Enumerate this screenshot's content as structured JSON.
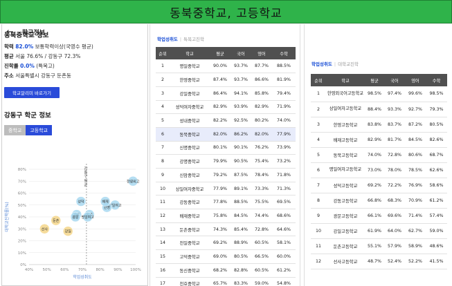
{
  "banner": "동북중학교, 고등학교",
  "left": {
    "header": "학군정보",
    "school_title": "동북중학교 정보",
    "rows": [
      {
        "label": "학력",
        "value": "82.0%",
        "rest": "보통학력이상(국영수 평균)"
      },
      {
        "label": "평균",
        "value": "",
        "rest": "서울 76.6% / 강동구 72.3%"
      },
      {
        "label": "진학률",
        "value": "0.0%",
        "rest": "(특목고)"
      },
      {
        "label": "주소",
        "value": "",
        "rest": "서울특별시 강동구 둔촌동"
      }
    ],
    "link_button": "학교알리미 바로가기",
    "section_title": "강동구 학군 정보",
    "tabs": [
      "중학교",
      "고등학교"
    ],
    "active_tab": "고등학교"
  },
  "mid": {
    "tab_on": "학업성취도",
    "tab_off": "특목고진학",
    "headers": [
      "순위",
      "학교",
      "평균",
      "국어",
      "영어",
      "수학"
    ],
    "highlight_rank": 6,
    "rows": [
      [
        "1",
        "명일중학교",
        "90.0%",
        "93.7%",
        "87.7%",
        "88.5%"
      ],
      [
        "2",
        "한영중학교",
        "87.4%",
        "93.7%",
        "86.6%",
        "81.9%"
      ],
      [
        "3",
        "강일중학교",
        "86.4%",
        "94.1%",
        "85.8%",
        "79.4%"
      ],
      [
        "4",
        "성덕여자중학교",
        "82.9%",
        "93.9%",
        "82.9%",
        "71.9%"
      ],
      [
        "5",
        "성내중학교",
        "82.2%",
        "92.5%",
        "80.2%",
        "74.0%"
      ],
      [
        "6",
        "동북중학교",
        "82.0%",
        "86.2%",
        "82.0%",
        "77.9%"
      ],
      [
        "7",
        "신명중학교",
        "80.1%",
        "90.1%",
        "76.2%",
        "73.9%"
      ],
      [
        "8",
        "강명중학교",
        "79.9%",
        "90.5%",
        "75.4%",
        "73.2%"
      ],
      [
        "9",
        "신암중학교",
        "79.2%",
        "87.5%",
        "78.4%",
        "71.8%"
      ],
      [
        "10",
        "상일여자중학교",
        "77.9%",
        "89.1%",
        "73.3%",
        "71.3%"
      ],
      [
        "11",
        "강동중학교",
        "77.8%",
        "88.5%",
        "75.5%",
        "69.5%"
      ],
      [
        "12",
        "배재중학교",
        "75.8%",
        "84.5%",
        "74.4%",
        "68.6%"
      ],
      [
        "13",
        "둔촌중학교",
        "74.3%",
        "85.4%",
        "72.8%",
        "64.6%"
      ],
      [
        "14",
        "천일중학교",
        "69.2%",
        "88.9%",
        "60.5%",
        "58.1%"
      ],
      [
        "15",
        "고덕중학교",
        "69.0%",
        "80.5%",
        "66.5%",
        "60.0%"
      ],
      [
        "16",
        "동신중학교",
        "68.2%",
        "82.8%",
        "60.5%",
        "61.2%"
      ],
      [
        "17",
        "천호중학교",
        "65.7%",
        "83.3%",
        "59.0%",
        "54.8%"
      ]
    ]
  },
  "right": {
    "tab_on": "학업성취도",
    "tab_off": "대학교진학",
    "headers": [
      "순위",
      "학교",
      "평균",
      "국어",
      "영어",
      "수학"
    ],
    "rows": [
      [
        "1",
        "한영외국어고등학교",
        "98.5%",
        "97.4%",
        "99.6%",
        "98.5%"
      ],
      [
        "2",
        "상일여자고등학교",
        "88.4%",
        "93.3%",
        "92.7%",
        "79.3%"
      ],
      [
        "3",
        "한영고등학교",
        "83.8%",
        "83.7%",
        "87.2%",
        "80.5%"
      ],
      [
        "4",
        "배재고등학교",
        "82.9%",
        "81.7%",
        "84.5%",
        "82.6%"
      ],
      [
        "5",
        "동북고등학교",
        "74.0%",
        "72.8%",
        "80.6%",
        "68.7%"
      ],
      [
        "6",
        "명일여자고등학교",
        "73.0%",
        "78.0%",
        "78.5%",
        "62.6%"
      ],
      [
        "7",
        "성덕고등학교",
        "69.2%",
        "72.2%",
        "76.9%",
        "58.6%"
      ],
      [
        "8",
        "강동고등학교",
        "66.8%",
        "68.3%",
        "70.9%",
        "61.2%"
      ],
      [
        "9",
        "광문고등학교",
        "66.1%",
        "69.6%",
        "71.4%",
        "57.4%"
      ],
      [
        "10",
        "강일고등학교",
        "61.9%",
        "64.0%",
        "62.7%",
        "59.0%"
      ],
      [
        "11",
        "둔촌고등학교",
        "55.1%",
        "57.9%",
        "58.9%",
        "48.6%"
      ],
      [
        "12",
        "선사고등학교",
        "48.7%",
        "52.4%",
        "52.2%",
        "41.5%"
      ]
    ]
  },
  "chart_data": {
    "type": "scatter",
    "xlabel": "학업성취도",
    "ylabel": "대학교진학률(%)",
    "xlim": [
      40,
      100
    ],
    "ylim": [
      0,
      80
    ],
    "xticks": [
      "40%",
      "50%",
      "60%",
      "70%",
      "80%",
      "90%",
      "100%"
    ],
    "yticks": [
      "0%",
      "10%",
      "20%",
      "30%",
      "40%",
      "50%",
      "60%",
      "70%",
      "80%"
    ],
    "avg_line_x": 72.3,
    "avg_label": "강동구 평균",
    "points": [
      {
        "name": "한영외고",
        "x": 98.5,
        "y": 70,
        "color": "#a8d8f0"
      },
      {
        "name": "상일여고",
        "x": 88.4,
        "y": 50,
        "color": "#a8d8f0"
      },
      {
        "name": "한영",
        "x": 83.8,
        "y": 48,
        "color": "#a8d8f0"
      },
      {
        "name": "배재",
        "x": 82.9,
        "y": 53,
        "color": "#a8d8f0"
      },
      {
        "name": "동북",
        "x": 74.0,
        "y": 42,
        "color": "#a8d8f0"
      },
      {
        "name": "명일여고",
        "x": 73.0,
        "y": 40,
        "color": "#a8d8f0"
      },
      {
        "name": "성덕",
        "x": 69.2,
        "y": 53,
        "color": "#a8d8f0"
      },
      {
        "name": "강동",
        "x": 66.8,
        "y": 42,
        "color": "#a8d8f0"
      },
      {
        "name": "광문",
        "x": 66.1,
        "y": 40,
        "color": "#a8d8f0"
      },
      {
        "name": "강일",
        "x": 61.9,
        "y": 28,
        "color": "#f5d68a"
      },
      {
        "name": "둔촌",
        "x": 55.1,
        "y": 37,
        "color": "#f5d68a"
      },
      {
        "name": "선사",
        "x": 48.7,
        "y": 30,
        "color": "#f5d68a"
      }
    ]
  }
}
